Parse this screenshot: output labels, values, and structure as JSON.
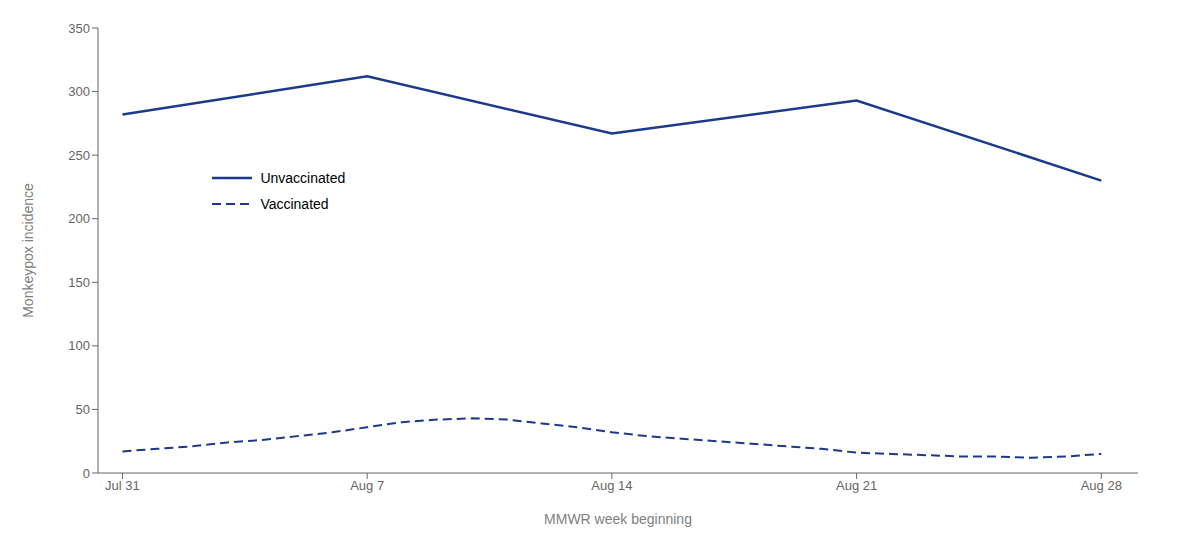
{
  "chart_data": {
    "type": "line",
    "xlabel": "MMWR week beginning",
    "ylabel": "Monkeypox incidence",
    "xlim": [
      -0.1,
      4.15
    ],
    "xticks": [
      {
        "value": 0,
        "label": "Jul 31"
      },
      {
        "value": 1,
        "label": "Aug 7"
      },
      {
        "value": 2,
        "label": "Aug 14"
      },
      {
        "value": 3,
        "label": "Aug 21"
      },
      {
        "value": 4,
        "label": "Aug 28"
      }
    ],
    "ylim": [
      0,
      350
    ],
    "yticks": [
      0,
      50,
      100,
      150,
      200,
      250,
      300,
      350
    ],
    "legend": "upper left",
    "series": [
      {
        "name": "Unvaccinated",
        "color": "#1b3a8c",
        "line_style": "solid",
        "x": [
          0,
          1,
          2,
          3,
          4
        ],
        "values": [
          282,
          312,
          267,
          293,
          230
        ]
      },
      {
        "name": "Vaccinated",
        "color": "#1b3a8c",
        "line_style": "dashed",
        "x": [
          0,
          0.143,
          0.286,
          0.429,
          0.571,
          0.714,
          0.857,
          1.0,
          1.143,
          1.286,
          1.429,
          1.571,
          1.714,
          1.857,
          2.0,
          2.143,
          2.286,
          2.429,
          2.571,
          2.714,
          2.857,
          3.0,
          3.143,
          3.286,
          3.429,
          3.571,
          3.714,
          3.857,
          4.0
        ],
        "values": [
          17,
          19,
          21,
          24,
          26,
          29,
          32,
          36,
          40,
          42,
          43,
          42,
          39,
          36,
          32,
          29,
          27,
          25,
          23,
          21,
          19,
          16,
          15,
          14,
          13,
          13,
          12,
          13,
          15
        ]
      }
    ]
  }
}
